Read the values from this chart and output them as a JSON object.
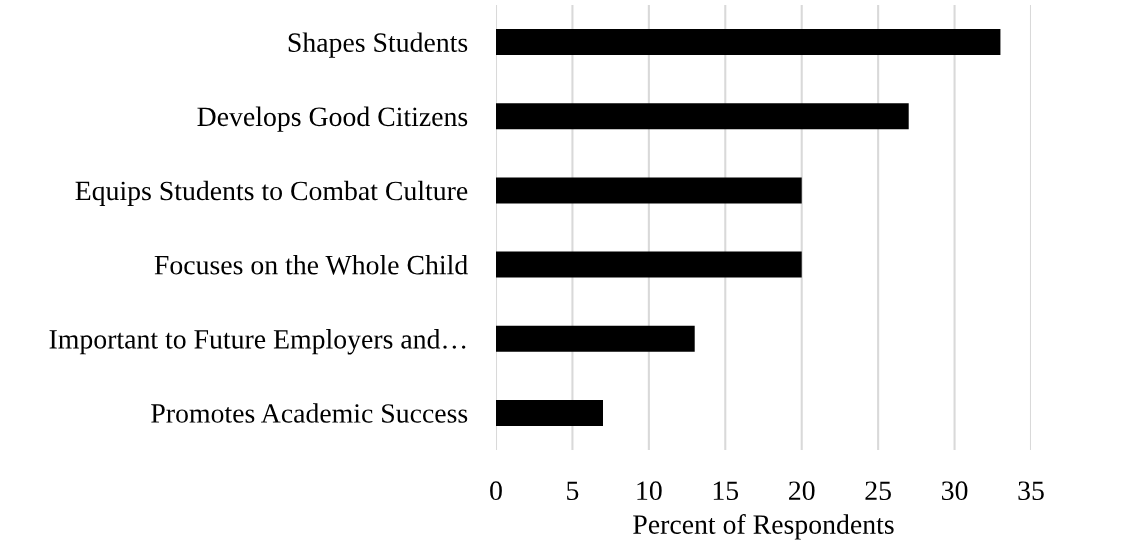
{
  "chart_data": {
    "type": "bar",
    "orientation": "horizontal",
    "xlabel": "Percent of Respondents",
    "categories": [
      "Shapes Students",
      "Develops Good Citizens",
      "Equips Students to Combat Culture",
      "Focuses on the Whole Child",
      "Important to Future Employers and…",
      "Promotes Academic Success"
    ],
    "values": [
      33,
      27,
      20,
      20,
      13,
      7
    ],
    "color": "#000000",
    "xlim": [
      0,
      35
    ],
    "xticks": [
      0,
      5,
      10,
      15,
      20,
      25,
      30,
      35
    ],
    "grid": "x",
    "legend": false
  }
}
